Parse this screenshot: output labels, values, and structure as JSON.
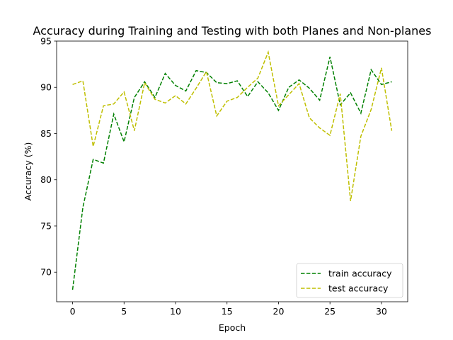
{
  "chart_data": {
    "type": "line",
    "title": "Accuracy during Training and Testing with both Planes and Non-planes",
    "xlabel": "Epoch",
    "ylabel": "Accuracy (%)",
    "xlim": [
      -1.55,
      32.55
    ],
    "ylim": [
      66.8,
      95.0
    ],
    "xticks": [
      0,
      5,
      10,
      15,
      20,
      25,
      30
    ],
    "yticks": [
      70,
      75,
      80,
      85,
      90,
      95
    ],
    "grid": false,
    "legend_position": "lower-right",
    "x": [
      0,
      1,
      2,
      3,
      4,
      5,
      6,
      7,
      8,
      9,
      10,
      11,
      12,
      13,
      14,
      15,
      16,
      17,
      18,
      19,
      20,
      21,
      22,
      23,
      24,
      25,
      26,
      27,
      28,
      29,
      30,
      31
    ],
    "series": [
      {
        "name": "train accuracy",
        "color": "#008000",
        "style": "dashed",
        "values": [
          68.1,
          77.0,
          82.2,
          81.8,
          87.1,
          84.1,
          88.9,
          90.6,
          88.9,
          91.5,
          90.2,
          89.6,
          91.8,
          91.6,
          90.5,
          90.4,
          90.7,
          89.0,
          90.6,
          89.4,
          87.5,
          90.0,
          90.8,
          89.9,
          88.6,
          93.3,
          88.1,
          89.4,
          87.2,
          91.9,
          90.3,
          90.6
        ]
      },
      {
        "name": "test accuracy",
        "color": "#bfbf00",
        "style": "dashed",
        "values": [
          90.3,
          90.7,
          83.6,
          88.0,
          88.2,
          89.5,
          85.3,
          90.5,
          88.7,
          88.3,
          89.1,
          88.2,
          89.9,
          91.7,
          86.9,
          88.5,
          88.9,
          90.0,
          91.0,
          93.8,
          88.0,
          89.2,
          90.4,
          86.7,
          85.6,
          84.8,
          89.3,
          77.7,
          84.7,
          87.6,
          92.1,
          85.3
        ]
      }
    ]
  }
}
